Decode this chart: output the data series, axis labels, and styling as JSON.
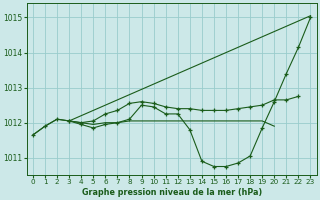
{
  "title": "Graphe pression niveau de la mer (hPa)",
  "bg_color": "#cce8e8",
  "grid_color": "#99cccc",
  "line_color": "#1a5c1a",
  "marker_color": "#1a5c1a",
  "xlim": [
    -0.5,
    23.5
  ],
  "ylim": [
    1010.5,
    1015.4
  ],
  "yticks": [
    1011,
    1012,
    1013,
    1014,
    1015
  ],
  "xticks": [
    0,
    1,
    2,
    3,
    4,
    5,
    6,
    7,
    8,
    9,
    10,
    11,
    12,
    13,
    14,
    15,
    16,
    17,
    18,
    19,
    20,
    21,
    22,
    23
  ],
  "series": {
    "diagonal": {
      "x": [
        3,
        23
      ],
      "y": [
        1012.05,
        1015.05
      ],
      "marker": false
    },
    "dip": {
      "x": [
        0,
        1,
        2,
        3,
        4,
        5,
        6,
        7,
        8,
        9,
        10,
        11,
        12,
        13,
        14,
        15,
        16,
        17,
        18,
        19,
        20,
        21,
        22,
        23
      ],
      "y": [
        1011.65,
        1011.9,
        1012.1,
        1012.05,
        1011.95,
        1011.85,
        1011.95,
        1012.0,
        1012.1,
        1012.5,
        1012.45,
        1012.25,
        1012.25,
        1011.8,
        1010.9,
        1010.75,
        1010.75,
        1010.85,
        1011.05,
        1011.85,
        1012.6,
        1013.4,
        1014.15,
        1015.0
      ],
      "marker": true
    },
    "medium": {
      "x": [
        3,
        4,
        5,
        6,
        7,
        8,
        9,
        10,
        11,
        12,
        13,
        14,
        15,
        16,
        17,
        18,
        19,
        20,
        21,
        22
      ],
      "y": [
        1012.05,
        1012.0,
        1012.05,
        1012.25,
        1012.35,
        1012.55,
        1012.6,
        1012.55,
        1012.45,
        1012.4,
        1012.4,
        1012.35,
        1012.35,
        1012.35,
        1012.4,
        1012.45,
        1012.5,
        1012.65,
        1012.65,
        1012.75
      ],
      "marker": true
    },
    "flat": {
      "x": [
        0,
        1,
        2,
        3,
        4,
        5,
        6,
        7,
        8,
        9,
        10,
        11,
        12,
        13,
        14,
        15,
        16,
        17,
        18,
        19,
        20
      ],
      "y": [
        1011.65,
        1011.9,
        1012.1,
        1012.05,
        1012.0,
        1011.95,
        1012.0,
        1012.0,
        1012.05,
        1012.05,
        1012.05,
        1012.05,
        1012.05,
        1012.05,
        1012.05,
        1012.05,
        1012.05,
        1012.05,
        1012.05,
        1012.05,
        1011.9
      ],
      "marker": false
    }
  }
}
